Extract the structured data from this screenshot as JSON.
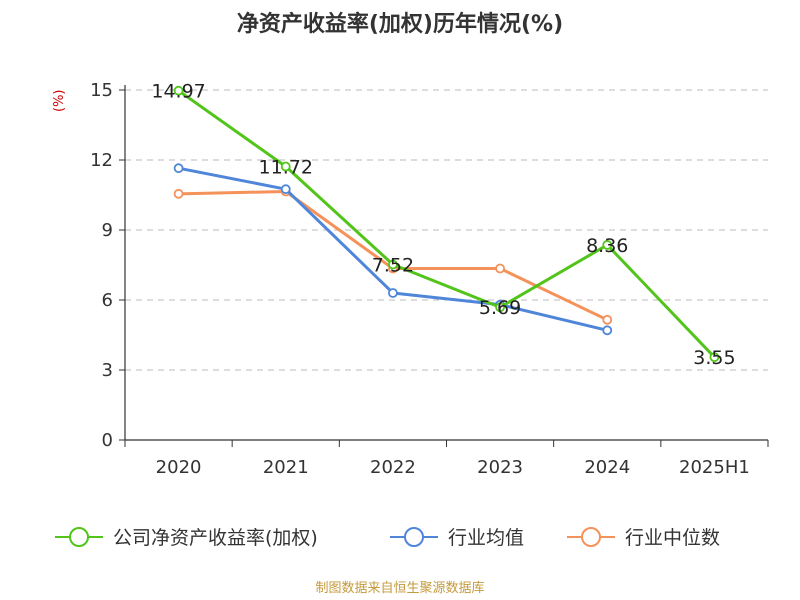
{
  "title": "净资产收益率(加权)历年情况(%)",
  "unit_label": "(%)",
  "source": "制图数据来自恒生聚源数据库",
  "chart_data": {
    "type": "line",
    "title": "净资产收益率(加权)历年情况(%)",
    "ylabel": "(%)",
    "categories": [
      "2020",
      "2021",
      "2022",
      "2023",
      "2024",
      "2025H1"
    ],
    "ylim": [
      0,
      15
    ],
    "yticks": [
      0,
      3,
      6,
      9,
      12,
      15
    ],
    "grid": true,
    "legend_position": "bottom",
    "series": [
      {
        "name": "公司净资产收益率(加权)",
        "color": "#52c41a",
        "values": [
          14.97,
          11.72,
          7.52,
          5.69,
          8.36,
          3.55
        ],
        "show_labels": true
      },
      {
        "name": "行业均值",
        "color": "#4f86d9",
        "values": [
          11.65,
          10.75,
          6.3,
          5.8,
          4.7,
          null
        ],
        "show_labels": false
      },
      {
        "name": "行业中位数",
        "color": "#f4925a",
        "values": [
          10.55,
          10.65,
          7.35,
          7.35,
          5.15,
          null
        ],
        "show_labels": false
      }
    ]
  }
}
